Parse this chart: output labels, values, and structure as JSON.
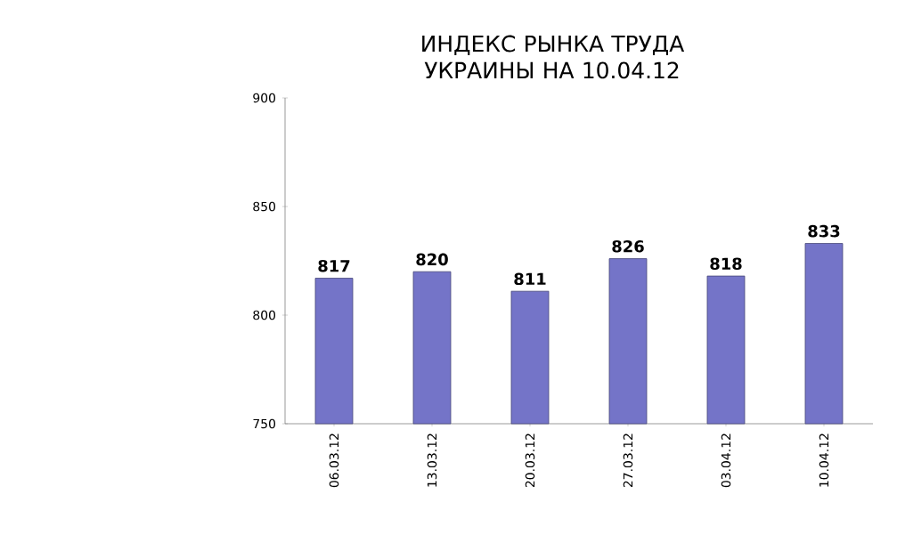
{
  "chart_data": {
    "type": "bar",
    "title": "ИНДЕКС РЫНКА ТРУДА УКРАИНЫ НА 10.04.12",
    "categories": [
      "06.03.12",
      "13.03.12",
      "20.03.12",
      "27.03.12",
      "03.04.12",
      "10.04.12"
    ],
    "values": [
      817,
      820,
      811,
      826,
      818,
      833
    ],
    "color": "#7474c8",
    "ylim": [
      750,
      900
    ],
    "yticks": [
      750,
      800,
      850,
      900
    ],
    "data_labels": true
  }
}
